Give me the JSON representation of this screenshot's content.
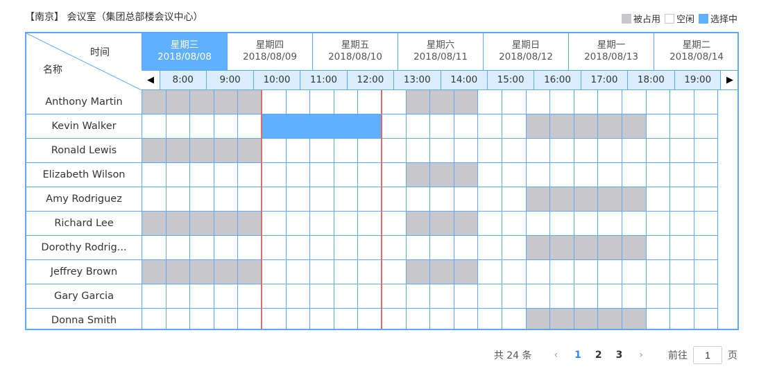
{
  "title": "【南京】 会议室（集团总部楼会议中心）",
  "legend": {
    "occupied": "被占用",
    "free": "空闲",
    "selected": "选择中"
  },
  "corner": {
    "time_label": "时间",
    "name_label": "名称"
  },
  "days": [
    {
      "weekday": "星期三",
      "date": "2018/08/08",
      "active": true
    },
    {
      "weekday": "星期四",
      "date": "2018/08/09",
      "active": false
    },
    {
      "weekday": "星期五",
      "date": "2018/08/10",
      "active": false
    },
    {
      "weekday": "星期六",
      "date": "2018/08/11",
      "active": false
    },
    {
      "weekday": "星期日",
      "date": "2018/08/12",
      "active": false
    },
    {
      "weekday": "星期一",
      "date": "2018/08/13",
      "active": false
    },
    {
      "weekday": "星期二",
      "date": "2018/08/14",
      "active": false
    }
  ],
  "nav": {
    "prev_icon": "◀",
    "next_icon": "▶"
  },
  "hours": [
    "8:00",
    "9:00",
    "10:00",
    "11:00",
    "12:00",
    "13:00",
    "14:00",
    "15:00",
    "16:00",
    "17:00",
    "18:00",
    "19:00"
  ],
  "rows": [
    {
      "name": "Anthony Martin",
      "occupied": [
        0,
        1,
        2,
        3,
        4,
        11,
        12,
        13
      ],
      "selected": []
    },
    {
      "name": "Kevin Walker",
      "occupied": [
        16,
        17,
        18,
        19,
        20
      ],
      "selected": [
        5,
        6,
        7,
        8,
        9
      ]
    },
    {
      "name": "Ronald Lewis",
      "occupied": [
        0,
        1,
        2,
        3,
        4
      ],
      "selected": []
    },
    {
      "name": "Elizabeth Wilson",
      "occupied": [
        11,
        12,
        13
      ],
      "selected": []
    },
    {
      "name": "Amy Rodriguez",
      "occupied": [
        16,
        17,
        18,
        19,
        20
      ],
      "selected": []
    },
    {
      "name": "Richard Lee",
      "occupied": [
        0,
        1,
        2,
        3,
        4,
        11,
        12,
        13
      ],
      "selected": []
    },
    {
      "name": "Dorothy Rodrig...",
      "occupied": [
        16,
        17,
        18,
        19,
        20
      ],
      "selected": []
    },
    {
      "name": "Jeffrey Brown",
      "occupied": [
        0,
        1,
        2,
        3,
        4,
        11,
        12,
        13
      ],
      "selected": []
    },
    {
      "name": "Gary Garcia",
      "occupied": [],
      "selected": []
    },
    {
      "name": "Donna Smith",
      "occupied": [
        16,
        17,
        18,
        19,
        20
      ],
      "selected": []
    }
  ],
  "pagination": {
    "total": "共 24 条",
    "prev_icon": "‹",
    "next_icon": "›",
    "pages": [
      "1",
      "2",
      "3"
    ],
    "current": "1",
    "goto_label": "前往",
    "goto_value": "1",
    "page_unit": "页"
  },
  "colors": {
    "accent": "#5fb0ff",
    "occupied": "#c8c8cc",
    "border": "#5aa9ff",
    "now_line": "#e06a6a"
  }
}
